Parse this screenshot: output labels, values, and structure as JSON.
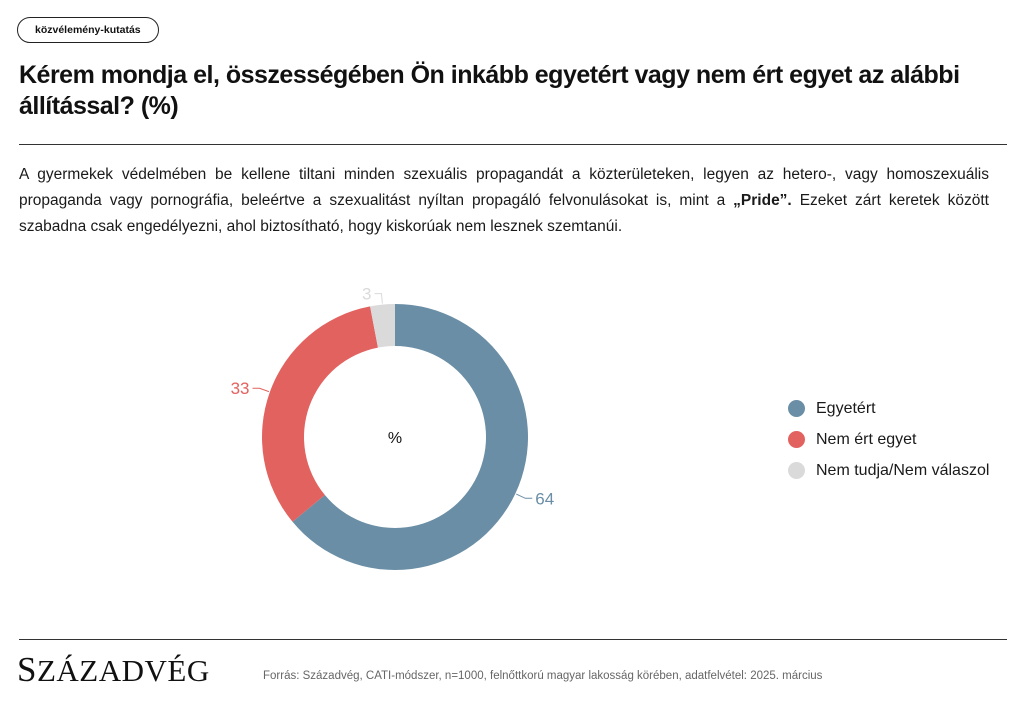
{
  "tag_label": "közvélemény-kutatás",
  "title": "Kérem mondja el, összességében Ön inkább egyetért vagy nem ért egyet az alábbi állítással? (%)",
  "statement": {
    "before": "A gyermekek védelmében be kellene tiltani minden szexuális propagandát a közterületeken, legyen az hetero-, vagy homoszexuális propaganda vagy pornográfia, beleértve a szexualitást nyíltan propagáló felvonulásokat is, mint a ",
    "bold": "„Pride”.",
    "after": " Ezeket zárt keretek között szabadna csak engedélyezni, ahol biztosítható, hogy kiskorúak nem lesznek szemtanúi."
  },
  "chart_data": {
    "type": "pie",
    "donut": true,
    "center_label": "%",
    "title": "Kérem mondja el, összességében Ön inkább egyetért vagy nem ért egyet az alábbi állítással? (%)",
    "legend_position": "right",
    "slices": [
      {
        "label": "Egyetért",
        "value": 64,
        "color": "#6a8ea5"
      },
      {
        "label": "Nem ért egyet",
        "value": 33,
        "color": "#e2625f"
      },
      {
        "label": "Nem tudja/Nem válaszol",
        "value": 3,
        "color": "#dadada"
      }
    ]
  },
  "logo": {
    "first": "S",
    "rest": "ZÁZADVÉG"
  },
  "source": "Forrás: Századvég, CATI-módszer, n=1000, felnőttkorú magyar lakosság körében, adatfelvétel: 2025. március"
}
